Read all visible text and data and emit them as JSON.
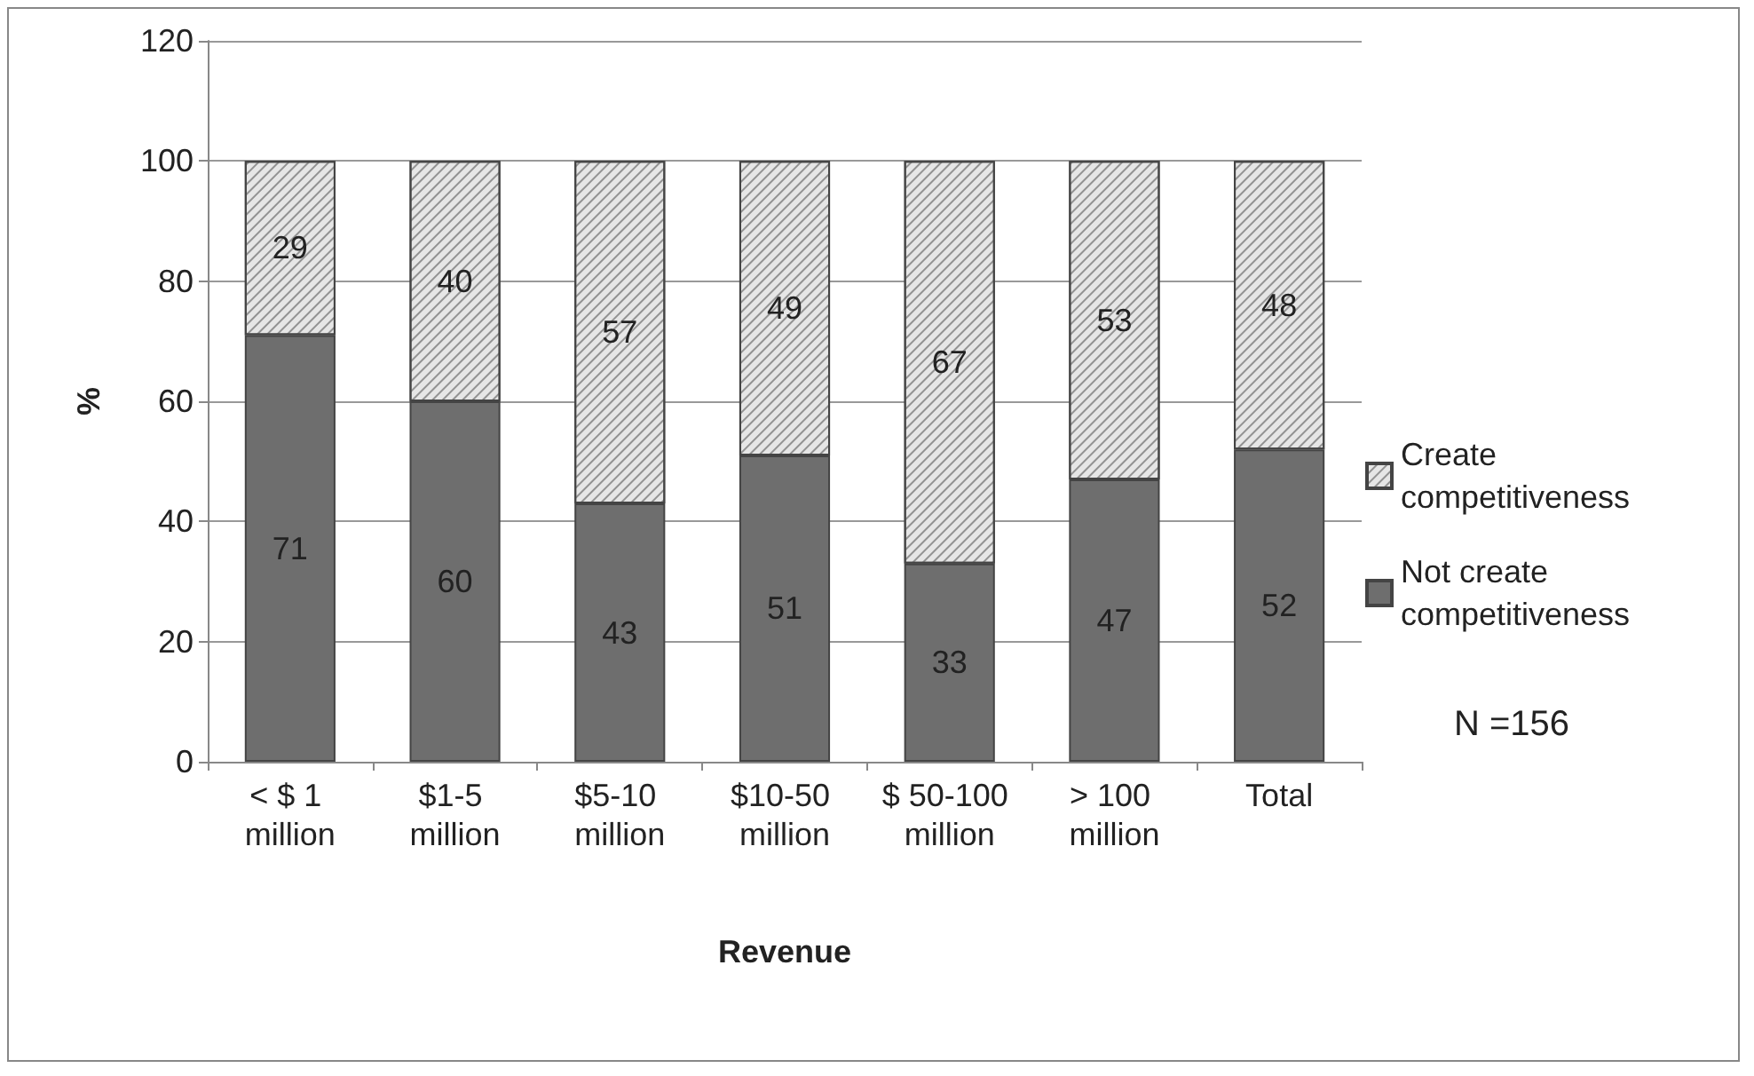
{
  "chart_data": {
    "type": "bar",
    "stacked": true,
    "xlabel": "Revenue",
    "ylabel": "%",
    "categories": [
      "< $ 1 million",
      "$1-5 million",
      "$5-10 million",
      "$10-50 million",
      "$ 50-100 million",
      "> 100 million",
      "Total"
    ],
    "series": [
      {
        "name": "Not create competitiveness",
        "color": "#6e6e6e",
        "values": [
          71,
          60,
          43,
          51,
          33,
          47,
          52
        ]
      },
      {
        "name": "Create competitiveness",
        "color": "#e6e6e6",
        "values": [
          29,
          40,
          57,
          49,
          67,
          53,
          48
        ]
      }
    ],
    "ylim": [
      0,
      120
    ],
    "yticks": [
      0,
      20,
      40,
      60,
      80,
      100,
      120
    ],
    "grid": "y",
    "legend": "right",
    "data_labels": true,
    "annotations": [
      "N =156"
    ]
  }
}
